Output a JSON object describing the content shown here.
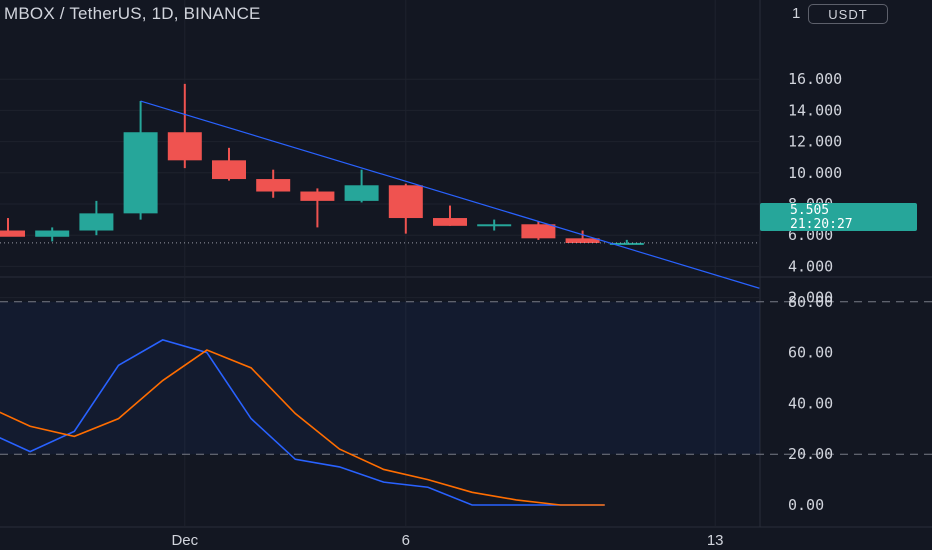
{
  "header": {
    "title": "MBOX / TetherUS, 1D, BINANCE",
    "currency_button": "USDT",
    "scale_indicator": "1"
  },
  "price_badge": {
    "price": "5.505",
    "countdown": "21:20:27"
  },
  "price_axis": {
    "labels": [
      "16.000",
      "14.000",
      "12.000",
      "10.000",
      "8.000",
      "6.000",
      "4.000",
      "2.000"
    ]
  },
  "oscillator_axis": {
    "labels": [
      "80.00",
      "60.00",
      "40.00",
      "20.00",
      "0.00"
    ]
  },
  "time_axis": {
    "labels": [
      "Dec",
      "6",
      "13"
    ]
  },
  "colors": {
    "background": "#131722",
    "bullish": "#26a69a",
    "bearish": "#ef5350",
    "trendline": "#2962ff",
    "k_line": "#2962ff",
    "d_line": "#ff6d00"
  },
  "chart_data": [
    {
      "type": "candlestick",
      "title": "MBOX / TetherUS, 1D, BINANCE",
      "ylim": [
        0,
        18
      ],
      "y_ticks": [
        2,
        4,
        6,
        8,
        10,
        12,
        14,
        16
      ],
      "current_price": 5.505,
      "x_ticks": [
        "Dec",
        "6",
        "13"
      ],
      "candles": [
        {
          "open": 6.3,
          "high": 7.1,
          "low": 6.0,
          "close": 5.9
        },
        {
          "open": 5.9,
          "high": 6.5,
          "low": 5.6,
          "close": 6.3
        },
        {
          "open": 6.3,
          "high": 8.2,
          "low": 6.0,
          "close": 7.4
        },
        {
          "open": 7.4,
          "high": 14.6,
          "low": 7.0,
          "close": 12.6
        },
        {
          "open": 12.6,
          "high": 15.7,
          "low": 10.3,
          "close": 10.8
        },
        {
          "open": 10.8,
          "high": 11.6,
          "low": 9.5,
          "close": 9.6
        },
        {
          "open": 9.6,
          "high": 10.2,
          "low": 8.4,
          "close": 8.8
        },
        {
          "open": 8.8,
          "high": 9.0,
          "low": 6.5,
          "close": 8.2
        },
        {
          "open": 8.2,
          "high": 10.2,
          "low": 8.1,
          "close": 9.2
        },
        {
          "open": 9.2,
          "high": 9.3,
          "low": 6.1,
          "close": 7.1
        },
        {
          "open": 7.1,
          "high": 7.9,
          "low": 6.6,
          "close": 6.6
        },
        {
          "open": 6.6,
          "high": 7.0,
          "low": 6.3,
          "close": 6.7
        },
        {
          "open": 6.7,
          "high": 6.9,
          "low": 5.7,
          "close": 5.8
        },
        {
          "open": 5.8,
          "high": 6.3,
          "low": 5.5,
          "close": 5.5
        },
        {
          "open": 5.5,
          "high": 5.7,
          "low": 5.4,
          "close": 5.505
        }
      ],
      "trendline": {
        "from": {
          "bar": 3,
          "price": 14.6
        },
        "to": {
          "bar": 17,
          "price": 2.6
        }
      }
    },
    {
      "type": "line",
      "ylim": [
        -4,
        88
      ],
      "y_ticks": [
        0,
        20,
        40,
        60,
        80
      ],
      "band": [
        20,
        80
      ],
      "x_bars": [
        -0.5,
        0.5,
        1.5,
        2.5,
        3.5,
        4.5,
        5.5,
        6.5,
        7.5,
        8.5,
        9.5,
        10.5,
        11.5,
        12.5,
        13.5
      ],
      "series": [
        {
          "color": "#2962ff",
          "values": [
            29,
            21,
            29,
            55,
            65,
            60,
            34,
            18,
            15,
            9,
            7,
            0,
            0,
            0,
            0
          ]
        },
        {
          "color": "#ff6d00",
          "values": [
            39,
            31,
            27,
            34,
            49,
            61,
            54,
            36,
            22,
            14,
            10,
            5,
            2,
            0,
            0
          ]
        }
      ]
    }
  ]
}
